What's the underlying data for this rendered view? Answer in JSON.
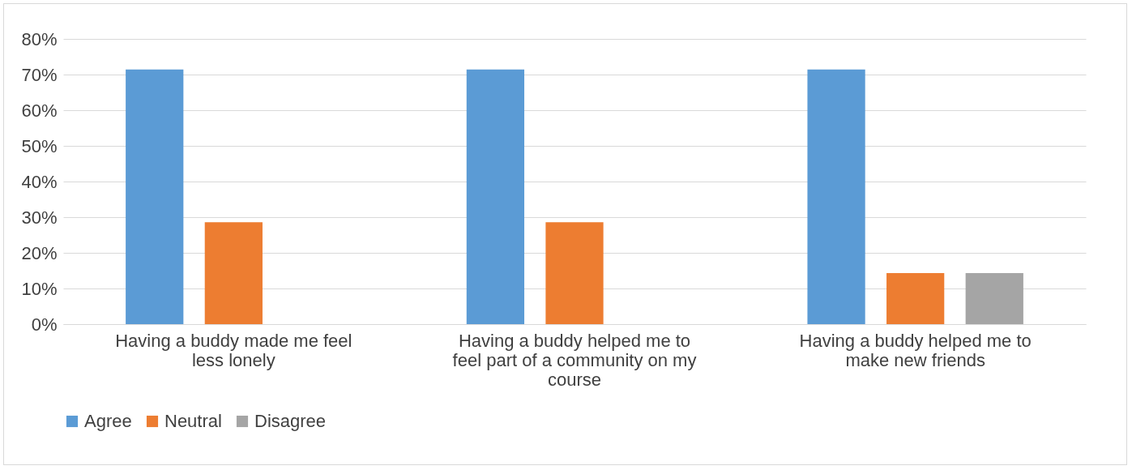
{
  "chart_data": {
    "type": "bar",
    "categories": [
      "Having a buddy made me feel less lonely",
      "Having a buddy helped me to feel part of a community on my course",
      "Having a buddy helped me to make new friends"
    ],
    "series": [
      {
        "name": "Agree",
        "color": "#5b9bd5",
        "values": [
          71.4,
          71.4,
          71.4
        ]
      },
      {
        "name": "Neutral",
        "color": "#ed7d31",
        "values": [
          28.6,
          28.6,
          14.3
        ]
      },
      {
        "name": "Disagree",
        "color": "#a5a5a5",
        "values": [
          0,
          0,
          14.3
        ]
      }
    ],
    "ylim": [
      0,
      80
    ],
    "yticks": [
      {
        "value": 0,
        "label": "0%"
      },
      {
        "value": 10,
        "label": "10%"
      },
      {
        "value": 20,
        "label": "20%"
      },
      {
        "value": 30,
        "label": "30%"
      },
      {
        "value": 40,
        "label": "40%"
      },
      {
        "value": 50,
        "label": "50%"
      },
      {
        "value": 60,
        "label": "60%"
      },
      {
        "value": 70,
        "label": "70%"
      },
      {
        "value": 80,
        "label": "80%"
      }
    ],
    "grid": "y",
    "legend": "bottom"
  }
}
